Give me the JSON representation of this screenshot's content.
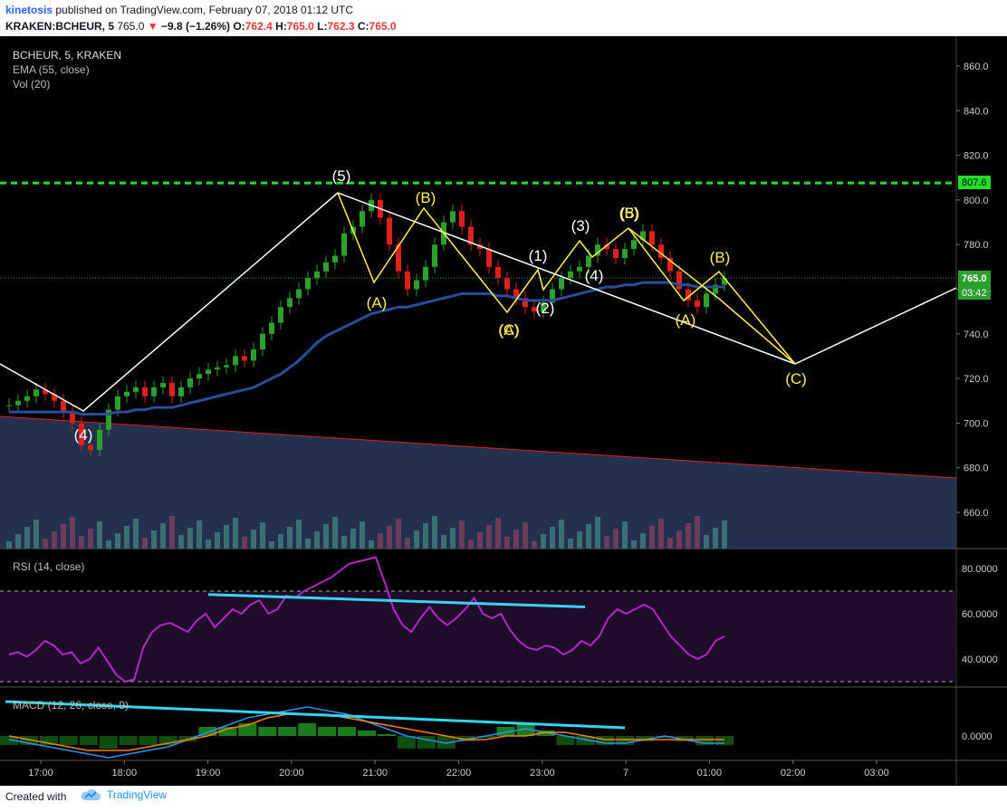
{
  "header": {
    "author": "kinetosis",
    "published_text": "published on TradingView.com, February 07, 2018 01:12 UTC",
    "symbol": "KRAKEN:BCHEUR, 5",
    "last": "765.0",
    "change_arrow": "▼",
    "change": "−9.8 (−1.26%)",
    "o_label": "O:",
    "o_value": "762.4",
    "h_label": "H:",
    "h_value": "765.0",
    "l_label": "L:",
    "l_value": "762.3",
    "c_label": "C:",
    "c_value": "765.0"
  },
  "legend": {
    "symbol": "BCHEUR, 5, KRAKEN",
    "ema": "EMA (55, close)",
    "vol": "Vol (20)",
    "rsi": "RSI (14, close)",
    "macd": "MACD (12, 26, close, 9)"
  },
  "price_tags": {
    "resistance": "807.6",
    "last": "765.0",
    "countdown": "03:42"
  },
  "footer": {
    "created_with": "Created with",
    "brand": "TradingView"
  },
  "colors": {
    "up": "#26a69a",
    "candle_up": "#2ca02c",
    "candle_down": "#e0201b",
    "ema": "#2a4d9b",
    "resistance": "#22e02a",
    "wave": "#fff04a",
    "trend": "#ffffff",
    "rsi": "#b526c7",
    "divergence": "#33d6f0",
    "macd": "#2196f3",
    "signal": "#ff7f0e",
    "background": "#000000"
  },
  "chart_data": [
    {
      "type": "candlestick",
      "title": "BCHEUR, 5, KRAKEN",
      "x_ticks": [
        "17:00",
        "18:00",
        "19:00",
        "20:00",
        "21:00",
        "22:00",
        "23:00",
        "7",
        "01:00",
        "02:00",
        "03:00"
      ],
      "y_ticks": [
        660,
        680,
        700,
        720,
        740,
        760,
        780,
        800,
        820,
        840,
        860
      ],
      "ylim": [
        645,
        867
      ],
      "resistance_level": 807.6,
      "last_price": 765.0,
      "ema_label": "EMA (55, close)",
      "close_series": [
        708,
        710,
        712,
        715,
        713,
        710,
        705,
        700,
        690,
        688,
        697,
        706,
        712,
        714,
        716,
        712,
        716,
        718,
        712,
        716,
        720,
        722,
        724,
        725,
        726,
        730,
        728,
        733,
        740,
        745,
        752,
        756,
        760,
        765,
        768,
        772,
        775,
        785,
        788,
        795,
        800,
        792,
        780,
        768,
        760,
        764,
        770,
        780,
        790,
        795,
        788,
        780,
        778,
        770,
        765,
        760,
        756,
        752,
        750,
        754,
        760,
        765,
        768,
        770,
        775,
        780,
        778,
        774,
        778,
        782,
        786,
        780,
        774,
        768,
        760,
        755,
        752,
        758,
        762,
        765
      ],
      "ema_series": [
        705,
        705,
        705,
        705,
        705,
        705,
        705,
        705,
        704,
        704,
        704,
        704,
        705,
        705,
        706,
        706,
        707,
        707,
        707,
        708,
        709,
        710,
        711,
        712,
        713,
        714,
        715,
        716,
        718,
        720,
        722,
        725,
        728,
        732,
        736,
        739,
        741,
        743,
        745,
        747,
        749,
        750,
        751,
        752,
        752,
        753,
        754,
        755,
        756,
        757,
        758,
        758,
        758,
        758,
        757,
        757,
        756,
        755,
        755,
        755,
        755,
        756,
        757,
        758,
        759,
        760,
        761,
        761,
        762,
        762,
        763,
        763,
        763,
        763,
        762,
        762,
        761,
        761,
        761,
        761
      ],
      "wave_labels": [
        "(4)",
        "(5)",
        "(A)",
        "(B)",
        "(C)",
        "(A)",
        "(1)",
        "(2)",
        "(3)",
        "(4)",
        "(5)",
        "(B)",
        "(A)",
        "(B)",
        "(C)"
      ]
    },
    {
      "type": "bar",
      "title": "Vol (20)"
    },
    {
      "type": "line",
      "title": "RSI (14, close)",
      "y_ticks": [
        "80.0000",
        "60.0000",
        "40.0000"
      ],
      "ylim": [
        25,
        90
      ],
      "bands": [
        70,
        30
      ],
      "values": [
        42,
        43,
        41,
        44,
        48,
        46,
        42,
        43,
        38,
        40,
        45,
        39,
        33,
        30,
        31,
        45,
        52,
        55,
        56,
        54,
        52,
        57,
        60,
        54,
        58,
        62,
        60,
        64,
        66,
        60,
        62,
        68,
        67,
        70,
        72,
        74,
        76,
        79,
        82,
        83,
        84,
        85,
        74,
        62,
        55,
        52,
        58,
        63,
        58,
        55,
        58,
        62,
        67,
        60,
        58,
        60,
        53,
        48,
        45,
        44,
        46,
        45,
        42,
        44,
        48,
        46,
        50,
        58,
        62,
        60,
        62,
        64,
        62,
        56,
        50,
        46,
        42,
        40,
        42,
        48,
        50
      ]
    },
    {
      "type": "line",
      "title": "MACD (12, 26, close, 9)",
      "y_ticks": [
        "0.0000"
      ],
      "series": [
        {
          "values": [
            -1,
            -2,
            -3,
            -4,
            -5,
            -6,
            -5,
            -4,
            -3,
            -1,
            1,
            3,
            5,
            6,
            7,
            8,
            7,
            6,
            4,
            2,
            0,
            -1,
            -2,
            -1,
            0,
            1,
            2,
            1,
            0,
            -1,
            -2,
            -2,
            -1,
            0,
            -1,
            -2,
            -2
          ]
        },
        {
          "values": [
            0,
            -1,
            -2,
            -3,
            -4,
            -4,
            -4,
            -3,
            -2,
            -1,
            0,
            2,
            3,
            5,
            6,
            6,
            6,
            5,
            4,
            3,
            2,
            1,
            0,
            -1,
            -1,
            0,
            0,
            1,
            1,
            0,
            -1,
            -1,
            -1,
            -1,
            -1,
            -1,
            -1
          ]
        }
      ]
    }
  ]
}
